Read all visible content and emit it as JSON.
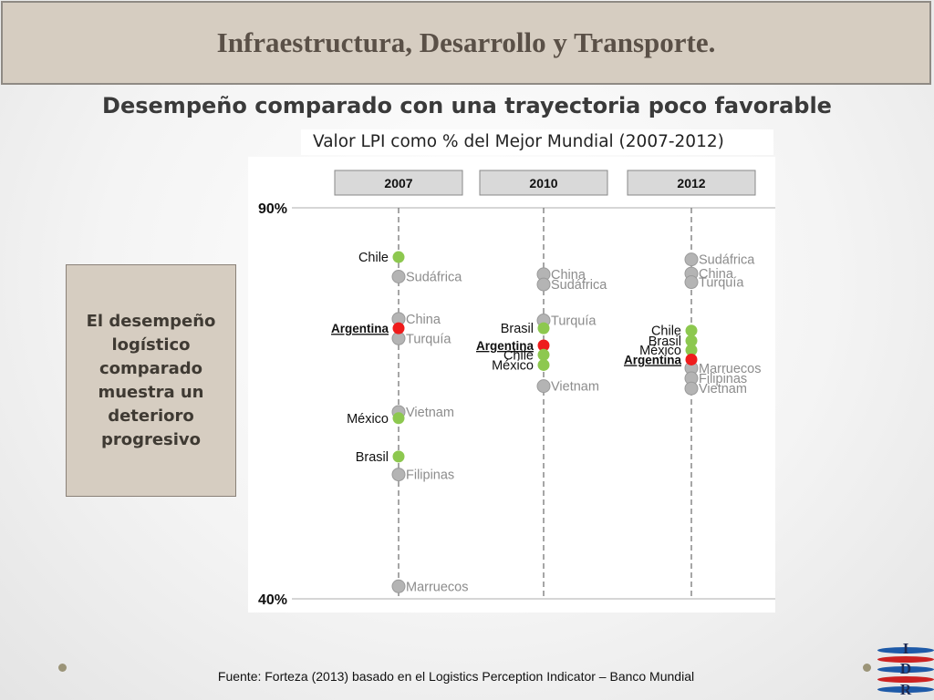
{
  "header": {
    "title": "Infraestructura, Desarrollo y Transporte."
  },
  "subtitle": "Desempeño comparado con una trayectoria poco favorable",
  "chart_title": "Valor LPI como % del Mejor Mundial (2007-2012)",
  "side_note": "El desempeño logístico comparado muestra un deterioro progresivo",
  "source": "Fuente: Forteza (2013) basado en el Logistics Perception Indicator – Banco Mundial",
  "logo": {
    "letters": [
      "I",
      "D",
      "R"
    ]
  },
  "colors": {
    "highlight": "#8dc84f",
    "argentina": "#ee1c1c",
    "other": "#b4b4b4"
  },
  "chart_data": {
    "type": "scatter",
    "ylim": [
      40,
      90
    ],
    "y_tick_labels": [
      {
        "value": 90,
        "label": "90%"
      },
      {
        "value": 40,
        "label": "40%"
      }
    ],
    "columns": [
      {
        "label": "2007",
        "points": [
          {
            "name": "Chile",
            "value": 83.7,
            "group": "highlight",
            "side": "left"
          },
          {
            "name": "Sudáfrica",
            "value": 81.2,
            "group": "other",
            "side": "right"
          },
          {
            "name": "China",
            "value": 75.8,
            "group": "other",
            "side": "right"
          },
          {
            "name": "Argentina",
            "value": 74.6,
            "group": "argentina",
            "side": "left"
          },
          {
            "name": "Turquía",
            "value": 73.3,
            "group": "other",
            "side": "right"
          },
          {
            "name": "Vietnam",
            "value": 63.9,
            "group": "other",
            "side": "right"
          },
          {
            "name": "México",
            "value": 63.1,
            "group": "highlight",
            "side": "left"
          },
          {
            "name": "Brasil",
            "value": 58.2,
            "group": "highlight",
            "side": "left"
          },
          {
            "name": "Filipinas",
            "value": 55.9,
            "group": "other",
            "side": "right"
          },
          {
            "name": "Marruecos",
            "value": 41.6,
            "group": "other",
            "side": "right"
          }
        ]
      },
      {
        "label": "2010",
        "points": [
          {
            "name": "China",
            "value": 81.5,
            "group": "other",
            "side": "right"
          },
          {
            "name": "Sudáfrica",
            "value": 80.2,
            "group": "other",
            "side": "right"
          },
          {
            "name": "Turquía",
            "value": 75.6,
            "group": "other",
            "side": "right"
          },
          {
            "name": "Brasil",
            "value": 74.6,
            "group": "highlight",
            "side": "left"
          },
          {
            "name": "Argentina",
            "value": 72.4,
            "group": "argentina",
            "side": "left"
          },
          {
            "name": "Chile",
            "value": 71.2,
            "group": "highlight",
            "side": "left"
          },
          {
            "name": "México",
            "value": 69.9,
            "group": "highlight",
            "side": "left"
          },
          {
            "name": "Vietnam",
            "value": 67.2,
            "group": "other",
            "side": "right"
          }
        ]
      },
      {
        "label": "2012",
        "points": [
          {
            "name": "Sudáfrica",
            "value": 83.4,
            "group": "other",
            "side": "right"
          },
          {
            "name": "China",
            "value": 81.6,
            "group": "other",
            "side": "right"
          },
          {
            "name": "Turquía",
            "value": 80.5,
            "group": "other",
            "side": "right"
          },
          {
            "name": "Chile",
            "value": 74.3,
            "group": "highlight",
            "side": "left"
          },
          {
            "name": "Brasil",
            "value": 73.0,
            "group": "highlight",
            "side": "left"
          },
          {
            "name": "México",
            "value": 71.8,
            "group": "highlight",
            "side": "left"
          },
          {
            "name": "Argentina",
            "value": 70.6,
            "group": "argentina",
            "side": "left"
          },
          {
            "name": "Marruecos",
            "value": 69.5,
            "group": "other",
            "side": "right"
          },
          {
            "name": "Filipinas",
            "value": 68.2,
            "group": "other",
            "side": "right"
          },
          {
            "name": "Vietnam",
            "value": 66.9,
            "group": "other",
            "side": "right"
          }
        ]
      }
    ]
  }
}
